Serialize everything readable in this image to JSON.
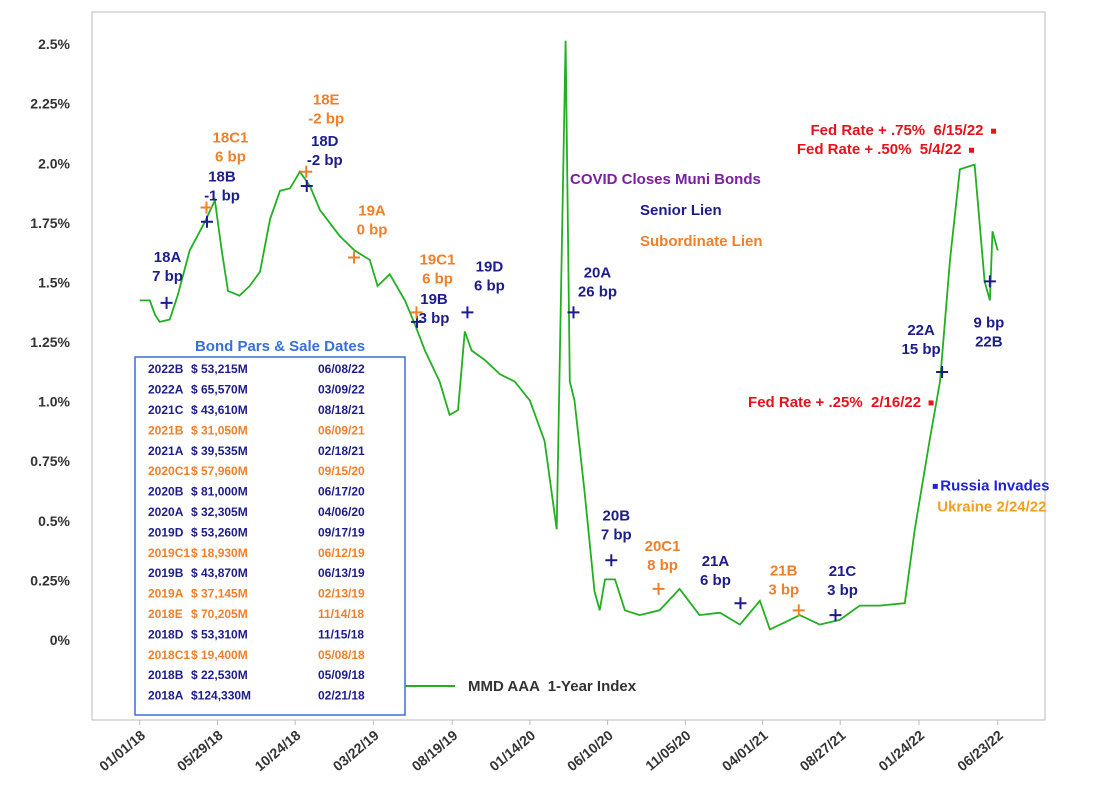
{
  "chart_data": {
    "type": "line",
    "xlim": [
      "2017-10-02",
      "2022-09-21"
    ],
    "ylim": [
      -0.33,
      2.64
    ],
    "xticks": [
      {
        "value": "2018-01-01",
        "label": "01/01/18"
      },
      {
        "value": "2018-05-29",
        "label": "05/29/18"
      },
      {
        "value": "2018-10-24",
        "label": "10/24/18"
      },
      {
        "value": "2019-03-22",
        "label": "03/22/19"
      },
      {
        "value": "2019-08-19",
        "label": "08/19/19"
      },
      {
        "value": "2020-01-14",
        "label": "01/14/20"
      },
      {
        "value": "2020-06-10",
        "label": "06/10/20"
      },
      {
        "value": "2020-11-05",
        "label": "11/05/20"
      },
      {
        "value": "2021-04-01",
        "label": "04/01/21"
      },
      {
        "value": "2021-08-27",
        "label": "08/27/21"
      },
      {
        "value": "2022-01-24",
        "label": "01/24/22"
      },
      {
        "value": "2022-06-23",
        "label": "06/23/22"
      }
    ],
    "yticks": [
      {
        "value": 0,
        "label": "0%"
      },
      {
        "value": 0.25,
        "label": "0.25%"
      },
      {
        "value": 0.5,
        "label": "0.5%"
      },
      {
        "value": 0.75,
        "label": "0.75%"
      },
      {
        "value": 1.0,
        "label": "1.0%"
      },
      {
        "value": 1.25,
        "label": "1.25%"
      },
      {
        "value": 1.5,
        "label": "1.5%"
      },
      {
        "value": 1.75,
        "label": "1.75%"
      },
      {
        "value": 2.0,
        "label": "2.0%"
      },
      {
        "value": 2.25,
        "label": "2.25%"
      },
      {
        "value": 2.5,
        "label": "2.5%"
      }
    ],
    "grid": false,
    "legend": "bottom",
    "x": [
      "2018-01-01",
      "2018-01-20",
      "2018-01-30",
      "2018-02-08",
      "2018-02-27",
      "2018-03-14",
      "2018-04-06",
      "2018-05-05",
      "2018-05-24",
      "2018-06-06",
      "2018-06-18",
      "2018-07-10",
      "2018-07-29",
      "2018-08-18",
      "2018-09-06",
      "2018-09-25",
      "2018-10-14",
      "2018-11-02",
      "2018-11-21",
      "2018-12-10",
      "2019-01-17",
      "2019-02-14",
      "2019-03-15",
      "2019-03-30",
      "2019-04-22",
      "2019-05-21",
      "2019-06-09",
      "2019-06-28",
      "2019-07-26",
      "2019-08-14",
      "2019-08-30",
      "2019-09-12",
      "2019-09-25",
      "2019-10-20",
      "2019-11-18",
      "2019-12-16",
      "2020-01-14",
      "2020-02-11",
      "2020-03-05",
      "2020-03-22",
      "2020-03-30",
      "2020-04-08",
      "2020-04-27",
      "2020-05-16",
      "2020-05-26",
      "2020-06-05",
      "2020-06-24",
      "2020-07-13",
      "2020-08-10",
      "2020-09-17",
      "2020-10-25",
      "2020-12-02",
      "2021-01-10",
      "2021-02-17",
      "2021-03-27",
      "2021-04-15",
      "2021-05-23",
      "2021-06-11",
      "2021-07-19",
      "2021-08-26",
      "2021-10-03",
      "2021-11-10",
      "2021-12-28",
      "2022-01-16",
      "2022-02-13",
      "2022-03-05",
      "2022-03-24",
      "2022-04-12",
      "2022-05-10",
      "2022-05-29",
      "2022-06-08",
      "2022-06-13",
      "2022-06-23"
    ],
    "series": [
      {
        "name": "MMD AAA  1-Year Index",
        "color": "#22b022",
        "values": [
          1.43,
          1.43,
          1.37,
          1.34,
          1.35,
          1.45,
          1.64,
          1.76,
          1.85,
          1.64,
          1.47,
          1.45,
          1.49,
          1.55,
          1.77,
          1.89,
          1.9,
          1.97,
          1.91,
          1.81,
          1.7,
          1.64,
          1.6,
          1.49,
          1.54,
          1.43,
          1.33,
          1.22,
          1.09,
          0.95,
          0.97,
          1.3,
          1.22,
          1.18,
          1.12,
          1.09,
          1.01,
          0.84,
          0.47,
          2.52,
          1.09,
          1.01,
          0.63,
          0.21,
          0.13,
          0.26,
          0.26,
          0.13,
          0.11,
          0.13,
          0.22,
          0.11,
          0.12,
          0.07,
          0.17,
          0.05,
          0.09,
          0.11,
          0.07,
          0.09,
          0.15,
          0.15,
          0.16,
          0.47,
          0.84,
          1.09,
          1.6,
          1.98,
          2.0,
          1.51,
          1.43,
          1.72,
          1.64
        ]
      }
    ],
    "markers": [
      {
        "text": [
          "18A",
          "7 bp"
        ],
        "x": "2018-02-21",
        "y": 1.42,
        "color": "#1c1c8a"
      },
      {
        "text": [
          "18B",
          "-1 bp"
        ],
        "x": "2018-05-09",
        "y": 1.76,
        "color": "#1c1c8a"
      },
      {
        "text": [
          "18C1",
          "6 bp"
        ],
        "x": "2018-05-08",
        "y": 1.82,
        "color": "#f07f2a"
      },
      {
        "text": [
          "18D",
          "-2 bp"
        ],
        "x": "2018-11-15",
        "y": 1.91,
        "color": "#1c1c8a"
      },
      {
        "text": [
          "18E",
          "-2 bp"
        ],
        "x": "2018-11-14",
        "y": 1.97,
        "color": "#f07f2a"
      },
      {
        "text": [
          "19A",
          "0 bp"
        ],
        "x": "2019-02-13",
        "y": 1.61,
        "color": "#f07f2a"
      },
      {
        "text": [
          "19B",
          "3 bp"
        ],
        "x": "2019-06-13",
        "y": 1.34,
        "color": "#1c1c8a"
      },
      {
        "text": [
          "19C1",
          "6 bp"
        ],
        "x": "2019-06-12",
        "y": 1.38,
        "color": "#f07f2a"
      },
      {
        "text": [
          "19D",
          "6 bp"
        ],
        "x": "2019-09-17",
        "y": 1.38,
        "color": "#1c1c8a"
      },
      {
        "text": [
          "20A",
          "26 bp"
        ],
        "x": "2020-04-06",
        "y": 1.38,
        "color": "#1c1c8a"
      },
      {
        "text": [
          "20B",
          "7 bp"
        ],
        "x": "2020-06-17",
        "y": 0.34,
        "color": "#1c1c8a"
      },
      {
        "text": [
          "20C1",
          "8 bp"
        ],
        "x": "2020-09-15",
        "y": 0.22,
        "color": "#f07f2a"
      },
      {
        "text": [
          "21A",
          "6 bp"
        ],
        "x": "2021-02-18",
        "y": 0.16,
        "color": "#1c1c8a"
      },
      {
        "text": [
          "21B",
          "3 bp"
        ],
        "x": "2021-06-09",
        "y": 0.13,
        "color": "#f07f2a"
      },
      {
        "text": [
          "21C",
          "3 bp"
        ],
        "x": "2021-08-18",
        "y": 0.11,
        "color": "#1c1c8a"
      },
      {
        "text": [
          "22A",
          "15 bp"
        ],
        "x": "2022-03-09",
        "y": 1.13,
        "color": "#1c1c8a"
      },
      {
        "text": [
          "9 bp",
          "22B"
        ],
        "x": "2022-06-08",
        "y": 1.51,
        "color": "#1c1c8a"
      }
    ],
    "events": [
      {
        "text": [
          "Fed Rate + .25%  2/16/22"
        ],
        "x": "2022-02-16",
        "y": 1.0,
        "colors": [
          "#e8101a"
        ]
      },
      {
        "text": [
          "Fed Rate + .50%  5/4/22"
        ],
        "x": "2022-05-04",
        "y": 2.06,
        "colors": [
          "#e8101a"
        ]
      },
      {
        "text": [
          "Fed Rate + .75%  6/15/22"
        ],
        "x": "2022-06-15",
        "y": 2.14,
        "colors": [
          "#e8101a"
        ]
      },
      {
        "text": [
          "Russia Invades",
          "Ukraine 2/24/22"
        ],
        "x": "2022-02-24",
        "y": 0.65,
        "colors": [
          "#2020e0",
          "#f0a020"
        ]
      }
    ],
    "notes": [
      {
        "text": "COVID Closes Muni Bonds",
        "color": "#7a1fa0"
      },
      {
        "text": "Senior Lien",
        "color": "#1c1c8a"
      },
      {
        "text": "Subordinate Lien",
        "color": "#f07f2a"
      }
    ],
    "table": {
      "title": "Bond Pars & Sale Dates",
      "rows": [
        {
          "cells": [
            "2022B",
            "$ 53,215M",
            "06/08/22"
          ],
          "color": "#1c1c8a"
        },
        {
          "cells": [
            "2022A",
            "$ 65,570M",
            "03/09/22"
          ],
          "color": "#1c1c8a"
        },
        {
          "cells": [
            "2021C",
            "$ 43,610M",
            "08/18/21"
          ],
          "color": "#1c1c8a"
        },
        {
          "cells": [
            "2021B",
            "$ 31,050M",
            "06/09/21"
          ],
          "color": "#f07f2a"
        },
        {
          "cells": [
            "2021A",
            "$ 39,535M",
            "02/18/21"
          ],
          "color": "#1c1c8a"
        },
        {
          "cells": [
            "2020C1",
            "$ 57,960M",
            "09/15/20"
          ],
          "color": "#f07f2a"
        },
        {
          "cells": [
            "2020B",
            "$ 81,000M",
            "06/17/20"
          ],
          "color": "#1c1c8a"
        },
        {
          "cells": [
            "2020A",
            "$ 32,305M",
            "04/06/20"
          ],
          "color": "#1c1c8a"
        },
        {
          "cells": [
            "2019D",
            "$ 53,260M",
            "09/17/19"
          ],
          "color": "#1c1c8a"
        },
        {
          "cells": [
            "2019C1",
            "$ 18,930M",
            "06/12/19"
          ],
          "color": "#f07f2a"
        },
        {
          "cells": [
            "2019B",
            "$ 43,870M",
            "06/13/19"
          ],
          "color": "#1c1c8a"
        },
        {
          "cells": [
            "2019A",
            "$ 37,145M",
            "02/13/19"
          ],
          "color": "#f07f2a"
        },
        {
          "cells": [
            "2018E",
            "$ 70,205M",
            "11/14/18"
          ],
          "color": "#f07f2a"
        },
        {
          "cells": [
            "2018D",
            "$ 53,310M",
            "11/15/18"
          ],
          "color": "#1c1c8a"
        },
        {
          "cells": [
            "2018C1",
            "$ 19,400M",
            "05/08/18"
          ],
          "color": "#f07f2a"
        },
        {
          "cells": [
            "2018B",
            "$ 22,530M",
            "05/09/18"
          ],
          "color": "#1c1c8a"
        },
        {
          "cells": [
            "2018A",
            "$124,330M",
            "02/21/18"
          ],
          "color": "#1c1c8a"
        }
      ]
    }
  }
}
